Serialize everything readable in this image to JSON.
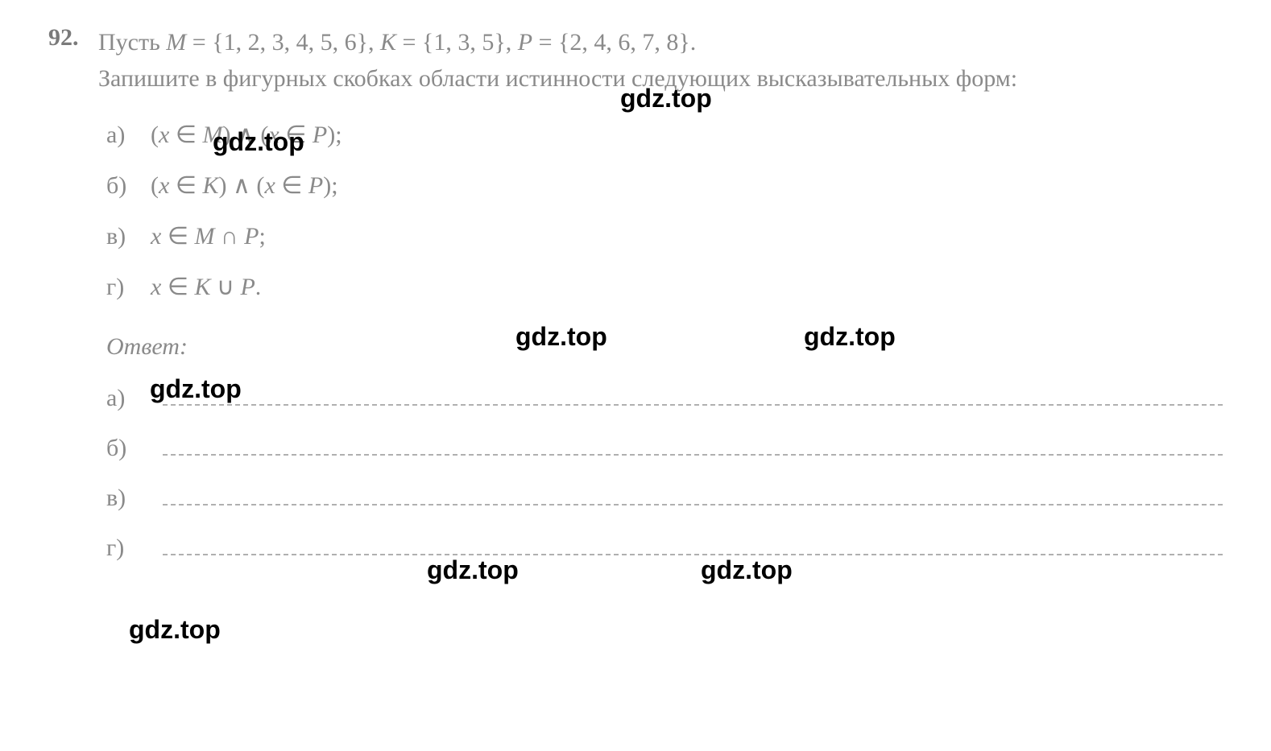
{
  "problem": {
    "number": "92.",
    "text_line1": "Пусть ",
    "set_m_label": "M",
    "set_m_def": " = {1, 2, 3, 4, 5, 6}, ",
    "set_k_label": "K",
    "set_k_def": " = {1, 3, 5}, ",
    "set_p_label": "P",
    "set_p_def": " = {2, 4, 6, 7, 8}.",
    "text_line2": "Запишите в фигурных скобках области истинности следующих высказывательных форм:"
  },
  "subitems": [
    {
      "label": "а)",
      "expr_open": "(",
      "x": "x",
      "in": " ∈ ",
      "set1": "M",
      "mid": ") ∧ (",
      "set2": "P",
      "close": ");"
    },
    {
      "label": "б)",
      "expr_open": "(",
      "x": "x",
      "in": " ∈ ",
      "set1": "K",
      "mid": ") ∧ (",
      "set2": "P",
      "close": ");"
    },
    {
      "label": "в)",
      "expr_open": "",
      "x": "x",
      "in": " ∈ ",
      "set1": "M",
      "op": " ∩ ",
      "set2": "P",
      "close": ";"
    },
    {
      "label": "г)",
      "expr_open": "",
      "x": "x",
      "in": " ∈ ",
      "set1": "K",
      "op": " ∪ ",
      "set2": "P",
      "close": "."
    }
  ],
  "answer": {
    "label": "Ответ:",
    "items": [
      "а)",
      "б)",
      "в)",
      "г)"
    ]
  },
  "watermarks": {
    "text": "gdz.top"
  },
  "styling": {
    "text_color": "#8a8a8a",
    "number_color": "#7a7a7a",
    "watermark_color": "#000000",
    "background_color": "#ffffff",
    "dash_color": "#b0b0b0",
    "base_fontsize": 30,
    "watermark_fontsize": 32,
    "font_family": "Georgia, Times New Roman, serif"
  }
}
